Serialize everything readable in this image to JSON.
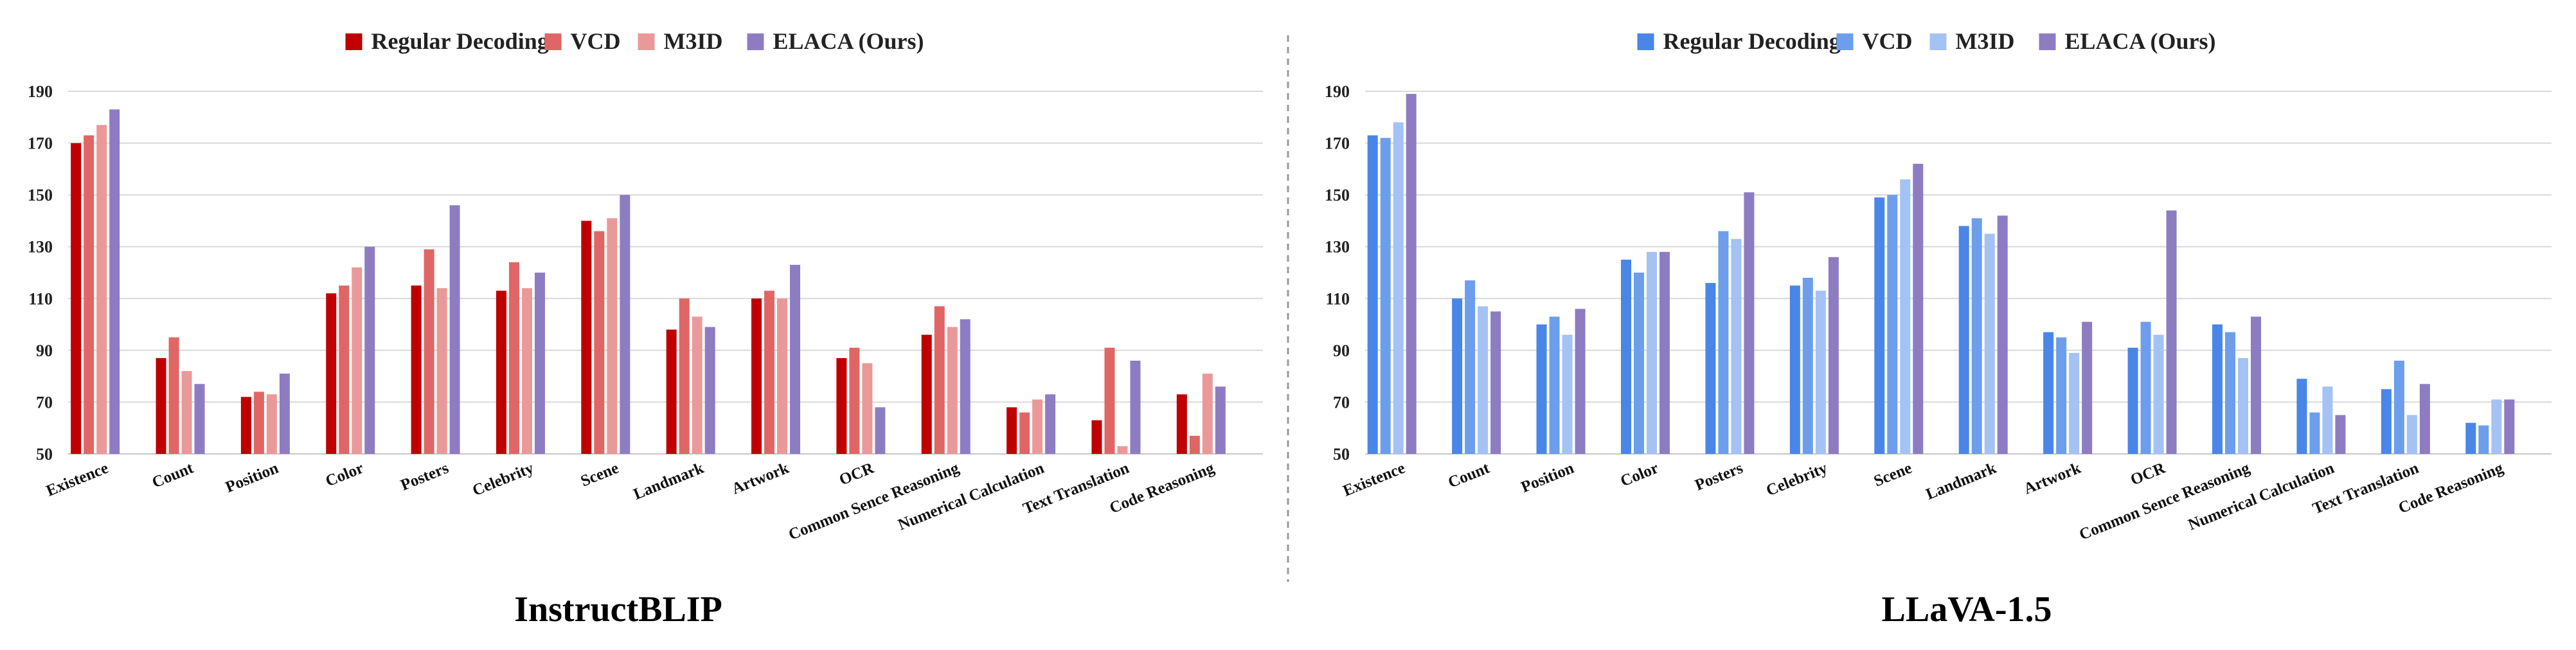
{
  "chart_data": [
    {
      "type": "bar",
      "title": "InstructBLIP",
      "categories": [
        "Existence",
        "Count",
        "Position",
        "Color",
        "Posters",
        "Celebrity",
        "Scene",
        "Landmark",
        "Artwork",
        "OCR",
        "Common Sence Reasoning",
        "Numerical Calculation",
        "Text Translation",
        "Code Reasoning"
      ],
      "yticks": [
        50,
        70,
        90,
        110,
        130,
        150,
        170,
        190
      ],
      "ylim": [
        50,
        195
      ],
      "grid": true,
      "legend_position": "top-center",
      "series": [
        {
          "name": "Regular Decoding",
          "color": "#c00000",
          "values": [
            170,
            87,
            72,
            112,
            115,
            113,
            140,
            98,
            110,
            87,
            96,
            68,
            63,
            73
          ]
        },
        {
          "name": "VCD",
          "color": "#e06666",
          "values": [
            173,
            95,
            74,
            115,
            129,
            124,
            136,
            110,
            113,
            91,
            107,
            66,
            91,
            57
          ]
        },
        {
          "name": "M3ID",
          "color": "#ea9999",
          "values": [
            177,
            82,
            73,
            122,
            114,
            114,
            141,
            103,
            110,
            85,
            99,
            71,
            53,
            81
          ]
        },
        {
          "name": "ELACA (Ours)",
          "color": "#8e7cc3",
          "values": [
            183,
            77,
            81,
            130,
            146,
            120,
            150,
            99,
            123,
            68,
            102,
            73,
            86,
            76
          ]
        }
      ]
    },
    {
      "type": "bar",
      "title": "LLaVA-1.5",
      "categories": [
        "Existence",
        "Count",
        "Position",
        "Color",
        "Posters",
        "Celebrity",
        "Scene",
        "Landmark",
        "Artwork",
        "OCR",
        "Common Sence Reasoning",
        "Numerical Calculation",
        "Text Translation",
        "Code Reasoning"
      ],
      "yticks": [
        50,
        70,
        90,
        110,
        130,
        150,
        170,
        190
      ],
      "ylim": [
        50,
        195
      ],
      "grid": true,
      "legend_position": "top-center",
      "series": [
        {
          "name": "Regular Decoding",
          "color": "#4a86e8",
          "values": [
            173,
            110,
            100,
            125,
            116,
            115,
            149,
            138,
            97,
            91,
            100,
            79,
            75,
            62
          ]
        },
        {
          "name": "VCD",
          "color": "#6d9eeb",
          "values": [
            172,
            117,
            103,
            120,
            136,
            118,
            150,
            141,
            95,
            101,
            97,
            66,
            86,
            61
          ]
        },
        {
          "name": "M3ID",
          "color": "#a4c2f4",
          "values": [
            178,
            107,
            96,
            128,
            133,
            113,
            156,
            135,
            89,
            96,
            87,
            76,
            65,
            71
          ]
        },
        {
          "name": "ELACA (Ours)",
          "color": "#8e7cc3",
          "values": [
            189,
            105,
            106,
            128,
            151,
            126,
            162,
            142,
            101,
            144,
            103,
            65,
            77,
            71
          ]
        }
      ]
    }
  ]
}
